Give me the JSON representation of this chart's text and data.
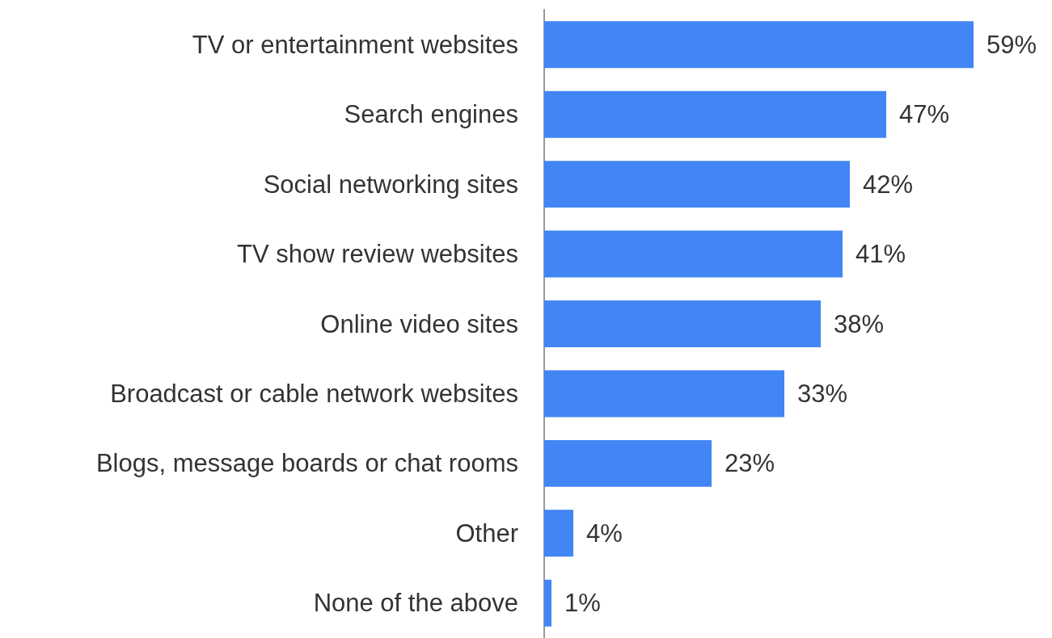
{
  "chart_data": {
    "type": "bar",
    "orientation": "horizontal",
    "categories": [
      "TV or entertainment websites",
      "Search engines",
      "Social networking sites",
      "TV show review websites",
      "Online video sites",
      "Broadcast or cable network websites",
      "Blogs, message boards or chat rooms",
      "Other",
      "None of the above"
    ],
    "values": [
      59,
      47,
      42,
      41,
      38,
      33,
      23,
      4,
      1
    ],
    "value_labels": [
      "59%",
      "47%",
      "42%",
      "41%",
      "38%",
      "33%",
      "23%",
      "4%",
      "1%"
    ],
    "color": "#4285f4"
  }
}
